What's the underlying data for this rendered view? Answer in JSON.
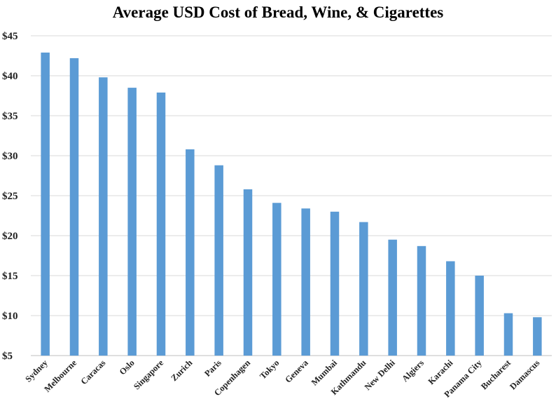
{
  "chart_data": {
    "type": "bar",
    "title": "Average USD Cost of  Bread, Wine, & Cigarettes",
    "xlabel": "",
    "ylabel": "",
    "ylim": [
      5,
      45
    ],
    "yticks": [
      5,
      10,
      15,
      20,
      25,
      30,
      35,
      40,
      45
    ],
    "ytick_prefix": "$",
    "grid": true,
    "bar_color": "#5b9bd5",
    "categories": [
      "Sydney",
      "Melbourne",
      "Caracas",
      "Oslo",
      "Singapore",
      "Zurich",
      "Paris",
      "Copenhagen",
      "Tokyo",
      "Geneva",
      "Mumbai",
      "Kathmandu",
      "New Delhi",
      "Algiers",
      "Karachi",
      "Panama City",
      "Bucharest",
      "Damascus"
    ],
    "values": [
      42.9,
      42.2,
      39.8,
      38.5,
      37.9,
      30.8,
      28.8,
      25.8,
      24.1,
      23.4,
      23.0,
      21.7,
      19.5,
      18.7,
      16.8,
      15.0,
      10.3,
      9.8
    ]
  }
}
